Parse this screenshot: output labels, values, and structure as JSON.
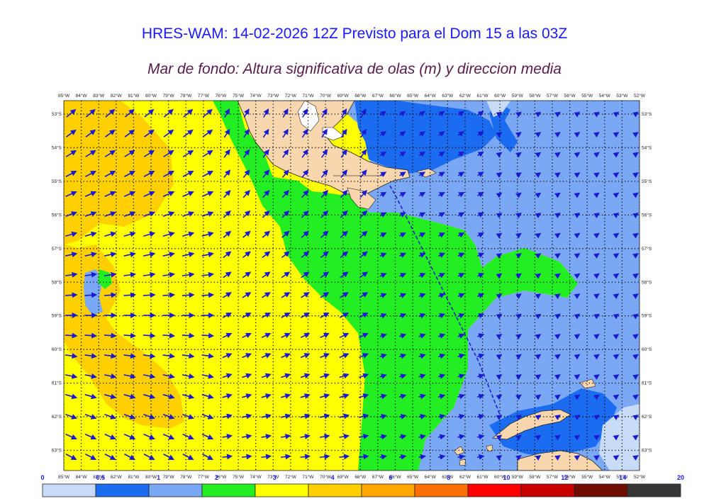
{
  "title": "HRES-WAM: 14-02-2026 12Z Previsto para el Dom 15 a las 03Z",
  "subtitle": "Mar de fondo: Altura significativa de olas (m) y direccion media",
  "map": {
    "lon_labels": [
      "85°W",
      "84°W",
      "83°W",
      "82°W",
      "81°W",
      "80°W",
      "79°W",
      "78°W",
      "77°W",
      "76°W",
      "75°W",
      "74°W",
      "73°W",
      "72°W",
      "71°W",
      "70°W",
      "69°W",
      "68°W",
      "67°W",
      "66°W",
      "65°W",
      "64°W",
      "63°W",
      "62°W",
      "61°W",
      "60°W",
      "59°W",
      "58°W",
      "57°W",
      "56°W",
      "55°W",
      "54°W",
      "53°W",
      "52°W"
    ],
    "lat_labels": [
      "53°S",
      "54°S",
      "55°S",
      "56°S",
      "57°S",
      "58°S",
      "59°S",
      "60°S",
      "61°S",
      "62°S",
      "63°S"
    ],
    "lon_range": [
      -85,
      -52
    ],
    "lat_range": [
      -52.6,
      -63.6
    ]
  },
  "legend": {
    "tick_labels": [
      "0",
      "0.5",
      "1",
      "2",
      "3",
      "4",
      "6",
      "8",
      "10",
      "12",
      "14",
      "20"
    ],
    "colors": [
      "#c8dcf8",
      "#1b6cf0",
      "#7aa8f4",
      "#22ee22",
      "#ffff00",
      "#ffd000",
      "#ffa600",
      "#ff7000",
      "#ff0000",
      "#c80000",
      "#6e0c00",
      "#363636"
    ]
  },
  "colors": {
    "land": "#f9d7ae",
    "arrow": "#1a1ad0",
    "title": "#1a1aff",
    "subtitle": "#5a1a4a"
  }
}
